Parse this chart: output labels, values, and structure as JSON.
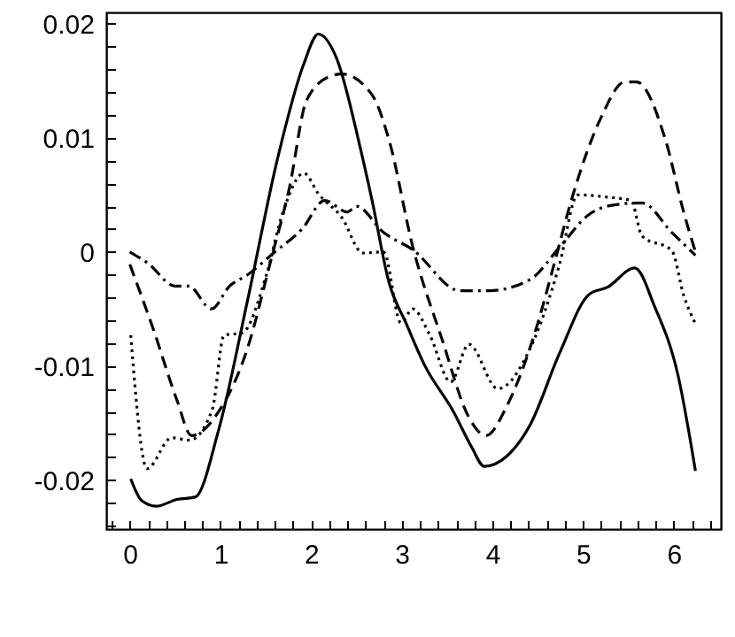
{
  "chart_data": {
    "type": "line",
    "xlim": [
      -0.26,
      6.52
    ],
    "ylim": [
      -0.0243,
      0.021
    ],
    "xticks": [
      {
        "value": -0.2,
        "label": null
      },
      0,
      {
        "value": 0.2,
        "label": null
      },
      {
        "value": 0.4,
        "label": null
      },
      {
        "value": 0.6,
        "label": null
      },
      {
        "value": 0.8,
        "label": null
      },
      1,
      {
        "value": 1.2,
        "label": null
      },
      {
        "value": 1.4,
        "label": null
      },
      {
        "value": 1.6,
        "label": null
      },
      {
        "value": 1.8,
        "label": null
      },
      2,
      {
        "value": 2.2,
        "label": null
      },
      {
        "value": 2.4,
        "label": null
      },
      {
        "value": 2.6,
        "label": null
      },
      {
        "value": 2.8,
        "label": null
      },
      3,
      {
        "value": 3.2,
        "label": null
      },
      {
        "value": 3.4,
        "label": null
      },
      {
        "value": 3.6,
        "label": null
      },
      {
        "value": 3.8,
        "label": null
      },
      4,
      {
        "value": 4.2,
        "label": null
      },
      {
        "value": 4.4,
        "label": null
      },
      {
        "value": 4.6,
        "label": null
      },
      {
        "value": 4.8,
        "label": null
      },
      5,
      {
        "value": 5.2,
        "label": null
      },
      {
        "value": 5.4,
        "label": null
      },
      {
        "value": 5.6,
        "label": null
      },
      {
        "value": 5.8,
        "label": null
      },
      6,
      {
        "value": 6.2,
        "label": null
      },
      {
        "value": 6.4,
        "label": null
      }
    ],
    "yticks": [
      {
        "value": -0.024,
        "label": null
      },
      {
        "value": -0.022,
        "label": null
      },
      -0.02,
      {
        "value": -0.018,
        "label": null
      },
      {
        "value": -0.016,
        "label": null
      },
      {
        "value": -0.014,
        "label": null
      },
      {
        "value": -0.012,
        "label": null
      },
      -0.01,
      {
        "value": -0.008,
        "label": null
      },
      {
        "value": -0.006,
        "label": null
      },
      {
        "value": -0.004,
        "label": null
      },
      {
        "value": -0.002,
        "label": null
      },
      0,
      {
        "value": 0.002,
        "label": null
      },
      {
        "value": 0.004,
        "label": null
      },
      {
        "value": 0.006,
        "label": null
      },
      {
        "value": 0.008,
        "label": null
      },
      0.01,
      {
        "value": 0.012,
        "label": null
      },
      {
        "value": 0.014,
        "label": null
      },
      {
        "value": 0.016,
        "label": null
      },
      {
        "value": 0.018,
        "label": null
      },
      0.02
    ],
    "grid": false,
    "marker": "none",
    "series": [
      {
        "color": "#000000",
        "line_style": "solid",
        "x": [
          0.01,
          0.13,
          0.29,
          0.52,
          0.72,
          0.98,
          1.3,
          1.63,
          1.92,
          2.08,
          2.28,
          2.54,
          2.67,
          2.86,
          3.05,
          3.25,
          3.57,
          3.77,
          3.91,
          4.16,
          4.42,
          4.74,
          5.07,
          5.27,
          5.57,
          5.79,
          6.05,
          6.24
        ],
        "values": [
          -0.0199,
          -0.0218,
          -0.0223,
          -0.0217,
          -0.0215,
          -0.0156,
          -0.0042,
          0.0082,
          0.0165,
          0.0191,
          0.017,
          0.0092,
          0.0046,
          -0.0027,
          -0.0063,
          -0.0099,
          -0.014,
          -0.0171,
          -0.0188,
          -0.0179,
          -0.0151,
          -0.0089,
          -0.0037,
          -0.0031,
          -0.0014,
          -0.0048,
          -0.0109,
          -0.0192
        ]
      },
      {
        "color": "#000000",
        "line_style": "dashed",
        "x": [
          0,
          0.26,
          0.52,
          0.68,
          0.98,
          1.3,
          1.56,
          1.76,
          1.95,
          2.21,
          2.34,
          2.67,
          2.86,
          3.12,
          3.45,
          3.74,
          3.93,
          4.16,
          4.48,
          4.68,
          4.87,
          5.2,
          5.46,
          5.59,
          5.91,
          6.11,
          6.24
        ],
        "values": [
          -0.0011,
          -0.0068,
          -0.013,
          -0.0161,
          -0.014,
          -0.0084,
          -0.0006,
          0.0056,
          0.0133,
          0.0154,
          0.0156,
          0.0138,
          0.0098,
          0.0005,
          -0.0078,
          -0.0145,
          -0.0161,
          -0.0135,
          -0.0068,
          -0.0011,
          0.0045,
          0.0118,
          0.0149,
          0.0149,
          0.0098,
          0.0035,
          0
        ]
      },
      {
        "color": "#000000",
        "line_style": "dotted",
        "x": [
          0.01,
          0.19,
          0.46,
          0.66,
          0.91,
          1.04,
          1.24,
          1.5,
          1.69,
          1.92,
          2.08,
          2.34,
          2.57,
          2.8,
          2.99,
          3.12,
          3.31,
          3.54,
          3.74,
          4.06,
          4.42,
          4.74,
          4.94,
          5.27,
          5.53,
          5.65,
          5.98,
          6.11,
          6.24
        ],
        "values": [
          -0.0073,
          -0.019,
          -0.0163,
          -0.0165,
          -0.0138,
          -0.0073,
          -0.0071,
          -0.0022,
          0.0035,
          0.0069,
          0.0051,
          0.003,
          -0.0001,
          0,
          -0.0062,
          -0.005,
          -0.0073,
          -0.0114,
          -0.0081,
          -0.012,
          -0.0084,
          -0.0011,
          0.005,
          0.0048,
          0.0045,
          0.0014,
          0.0001,
          -0.0038,
          -0.0063
        ]
      },
      {
        "color": "#000000",
        "line_style": "dashdot",
        "x": [
          0,
          0.2,
          0.5,
          0.65,
          0.9,
          1.1,
          1.3,
          1.6,
          1.9,
          2.15,
          2.4,
          2.5,
          2.8,
          3.12,
          3.64,
          3.96,
          4.42,
          4.74,
          5.07,
          5.33,
          5.65,
          5.98,
          6.24
        ],
        "values": [
          0,
          -0.001,
          -0.003,
          -0.003,
          -0.005,
          -0.003,
          -0.002,
          0,
          0.002,
          0.0045,
          0.0035,
          0.004,
          0.0017,
          0.0002,
          -0.0034,
          -0.0034,
          -0.0024,
          0.0004,
          0.0033,
          0.0041,
          0.0043,
          0.0017,
          -0.0003
        ]
      }
    ]
  }
}
